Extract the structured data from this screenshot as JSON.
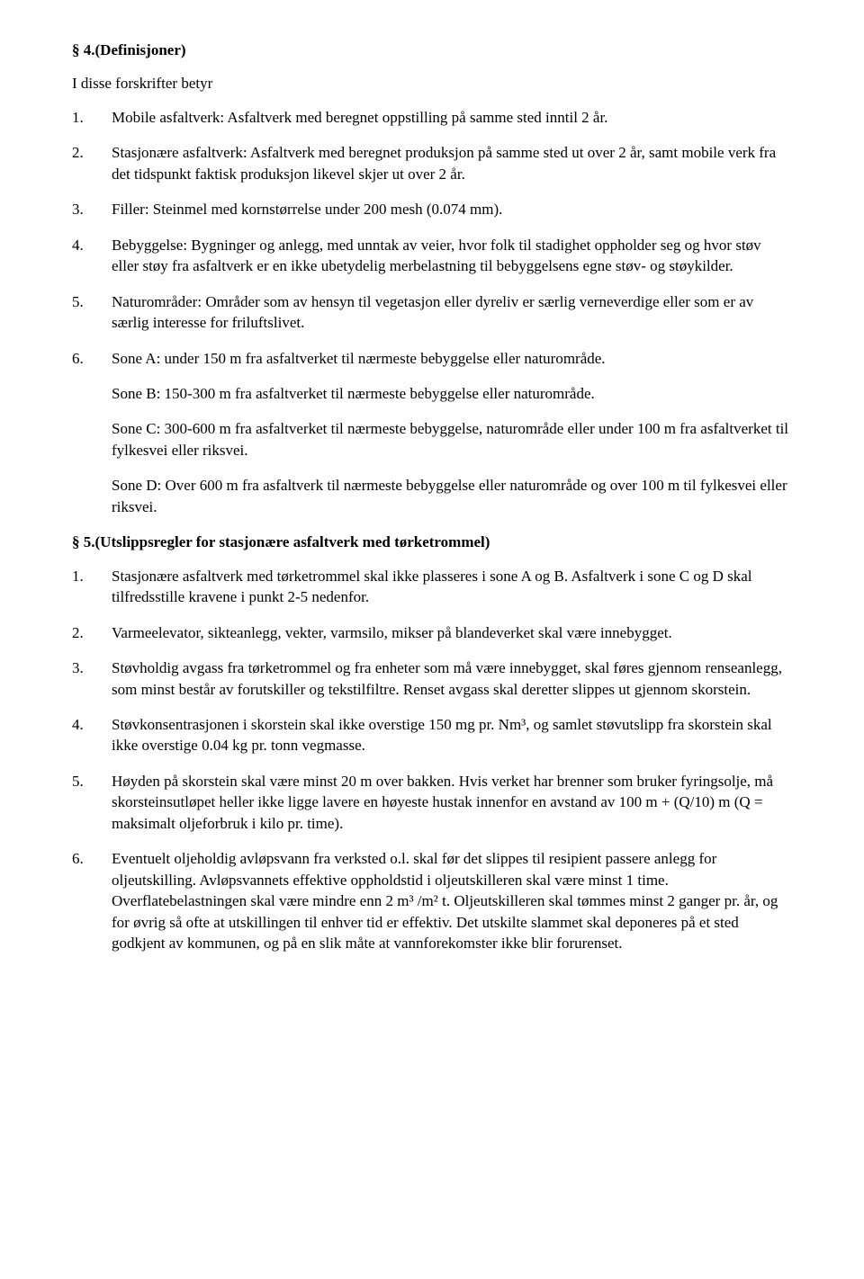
{
  "section4": {
    "heading": "§ 4.(Definisjoner)",
    "intro": "I disse forskrifter betyr",
    "items": [
      {
        "num": "1.",
        "paragraphs": [
          "Mobile asfaltverk: Asfaltverk med beregnet oppstilling på samme sted inntil 2 år."
        ]
      },
      {
        "num": "2.",
        "paragraphs": [
          "Stasjonære asfaltverk: Asfaltverk med beregnet produksjon på samme sted ut over 2 år, samt mobile verk fra det tidspunkt faktisk produksjon likevel skjer ut over 2 år."
        ]
      },
      {
        "num": "3.",
        "paragraphs": [
          "Filler: Steinmel med kornstørrelse under 200 mesh (0.074 mm)."
        ]
      },
      {
        "num": "4.",
        "paragraphs": [
          "Bebyggelse: Bygninger og anlegg, med unntak av veier, hvor folk til stadighet oppholder seg og hvor støv eller støy fra asfaltverk er en ikke ubetydelig merbelastning til bebyggelsens egne støv- og støykilder."
        ]
      },
      {
        "num": "5.",
        "paragraphs": [
          "Naturområder: Områder som av hensyn til vegetasjon eller dyreliv er særlig verneverdige eller som er av særlig interesse for friluftslivet."
        ]
      },
      {
        "num": "6.",
        "paragraphs": [
          "Sone A: under 150 m fra asfaltverket til nærmeste bebyggelse eller naturområde.",
          "Sone B: 150-300 m fra asfaltverket til nærmeste bebyggelse eller naturområde.",
          "Sone C: 300-600 m fra asfaltverket til nærmeste bebyggelse, naturområde eller under 100 m fra asfaltverket til fylkesvei eller riksvei.",
          "Sone D: Over 600 m fra asfaltverk til nærmeste bebyggelse eller naturområde og over 100 m til fylkesvei eller riksvei."
        ]
      }
    ]
  },
  "section5": {
    "heading": "§ 5.(Utslippsregler for stasjonære asfaltverk med tørketrommel)",
    "items": [
      {
        "num": "1.",
        "paragraphs": [
          "Stasjonære asfaltverk med tørketrommel skal ikke plasseres i sone A og B. Asfaltverk i sone C og D skal tilfredsstille kravene i punkt 2-5 nedenfor."
        ]
      },
      {
        "num": "2.",
        "paragraphs": [
          "Varmeelevator, sikteanlegg, vekter, varmsilo, mikser på blandeverket skal være innebygget."
        ]
      },
      {
        "num": "3.",
        "paragraphs": [
          "Støvholdig avgass fra tørketrommel og fra enheter som må være innebygget, skal føres gjennom renseanlegg, som minst består av forutskiller og tekstilfiltre. Renset avgass skal deretter slippes ut gjennom skorstein."
        ]
      },
      {
        "num": "4.",
        "paragraphs": [
          "Støvkonsentrasjonen i skorstein skal ikke overstige 150 mg pr. Nm³, og samlet støvutslipp fra skorstein skal ikke overstige 0.04 kg pr. tonn vegmasse."
        ]
      },
      {
        "num": "5.",
        "paragraphs": [
          "Høyden på skorstein skal være minst 20 m over bakken. Hvis verket har brenner som bruker fyringsolje, må skorsteinsutløpet heller ikke ligge lavere en høyeste hustak innenfor en avstand av 100 m + (Q/10) m (Q = maksimalt oljeforbruk i kilo pr. time)."
        ]
      },
      {
        "num": "6.",
        "paragraphs": [
          "Eventuelt oljeholdig avløpsvann fra verksted o.l. skal før det slippes til resipient passere anlegg for oljeutskilling. Avløpsvannets effektive oppholdstid i oljeutskilleren skal være minst 1 time. Overflatebelastningen skal være mindre enn 2 m³ /m² t. Oljeutskilleren skal tømmes minst 2 ganger pr. år, og for øvrig så ofte at utskillingen til enhver tid er effektiv. Det utskilte slammet skal deponeres på et sted godkjent av kommunen, og på en slik måte at vannforekomster ikke blir forurenset."
        ]
      }
    ]
  }
}
